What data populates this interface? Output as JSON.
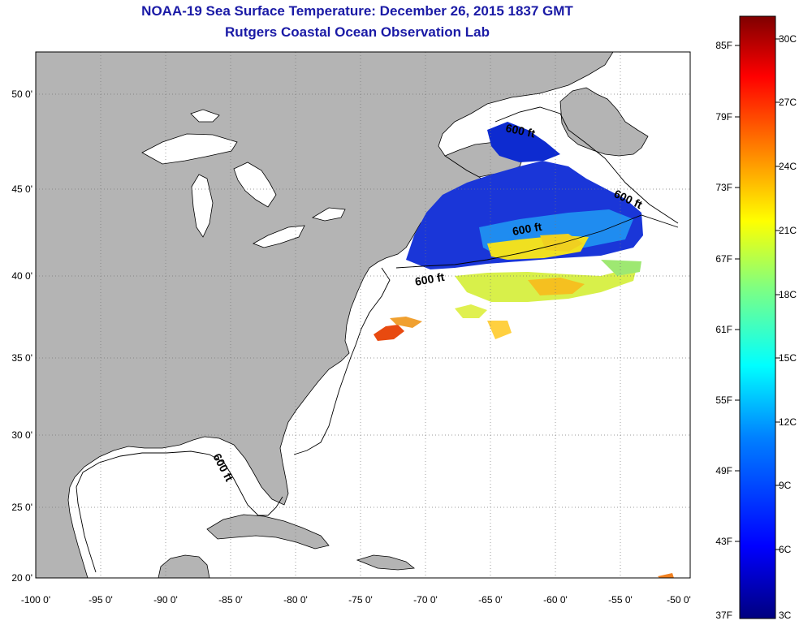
{
  "header": {
    "title": "NOAA-19 Sea Surface Temperature:  December 26, 2015 1837 GMT",
    "subtitle": "Rutgers Coastal Ocean Observation Lab"
  },
  "axes": {
    "lat_labels": [
      "50 0'",
      "45 0'",
      "40 0'",
      "35 0'",
      "30 0'",
      "25 0'",
      "20 0'"
    ],
    "lon_labels": [
      "-100 0'",
      "-95 0'",
      "-90 0'",
      "-85 0'",
      "-80 0'",
      "-75 0'",
      "-70 0'",
      "-65 0'",
      "-60 0'",
      "-55 0'",
      "-50 0'"
    ]
  },
  "isobath_labels": [
    "600 ft",
    "600 ft",
    "600 ft",
    "600 ft",
    "600 ft"
  ],
  "colorbar": {
    "fahrenheit_labels": [
      "85F",
      "79F",
      "73F",
      "67F",
      "61F",
      "55F",
      "49F",
      "43F",
      "37F"
    ],
    "celsius_labels": [
      "30C",
      "27C",
      "24C",
      "21C",
      "18C",
      "15C",
      "12C",
      "9C",
      "6C",
      "3C"
    ],
    "colors": [
      "#00007f",
      "#0000ff",
      "#0080ff",
      "#00ffff",
      "#80ff80",
      "#ffff00",
      "#ff8000",
      "#ff0000",
      "#7f0000"
    ]
  },
  "colors": {
    "land": "#b4b4b4",
    "ocean": "#ffffff",
    "title": "#1a1aa6"
  }
}
